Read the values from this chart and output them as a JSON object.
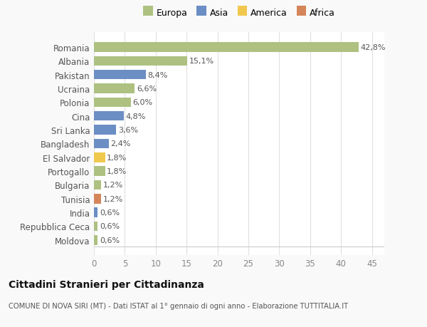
{
  "categories": [
    "Moldova",
    "Repubblica Ceca",
    "India",
    "Tunisia",
    "Bulgaria",
    "Portogallo",
    "El Salvador",
    "Bangladesh",
    "Sri Lanka",
    "Cina",
    "Polonia",
    "Ucraina",
    "Pakistan",
    "Albania",
    "Romania"
  ],
  "values": [
    0.6,
    0.6,
    0.6,
    1.2,
    1.2,
    1.8,
    1.8,
    2.4,
    3.6,
    4.8,
    6.0,
    6.6,
    8.4,
    15.1,
    42.8
  ],
  "labels": [
    "0,6%",
    "0,6%",
    "0,6%",
    "1,2%",
    "1,2%",
    "1,8%",
    "1,8%",
    "2,4%",
    "3,6%",
    "4,8%",
    "6,0%",
    "6,6%",
    "8,4%",
    "15,1%",
    "42,8%"
  ],
  "colors": [
    "#aec181",
    "#aec181",
    "#6b8ec4",
    "#d4855a",
    "#aec181",
    "#aec181",
    "#f0c84e",
    "#6b8ec4",
    "#6b8ec4",
    "#6b8ec4",
    "#aec181",
    "#aec181",
    "#6b8ec4",
    "#aec181",
    "#aec181"
  ],
  "legend_labels": [
    "Europa",
    "Asia",
    "America",
    "Africa"
  ],
  "legend_colors": [
    "#aec181",
    "#6b8ec4",
    "#f0c84e",
    "#d4855a"
  ],
  "title": "Cittadini Stranieri per Cittadinanza",
  "subtitle": "COMUNE DI NOVA SIRI (MT) - Dati ISTAT al 1° gennaio di ogni anno - Elaborazione TUTTITALIA.IT",
  "xlim": [
    0,
    47
  ],
  "xticks": [
    0,
    5,
    10,
    15,
    20,
    25,
    30,
    35,
    40,
    45
  ],
  "background_color": "#f9f9f9",
  "bar_background": "#ffffff",
  "grid_color": "#e0e0e0"
}
